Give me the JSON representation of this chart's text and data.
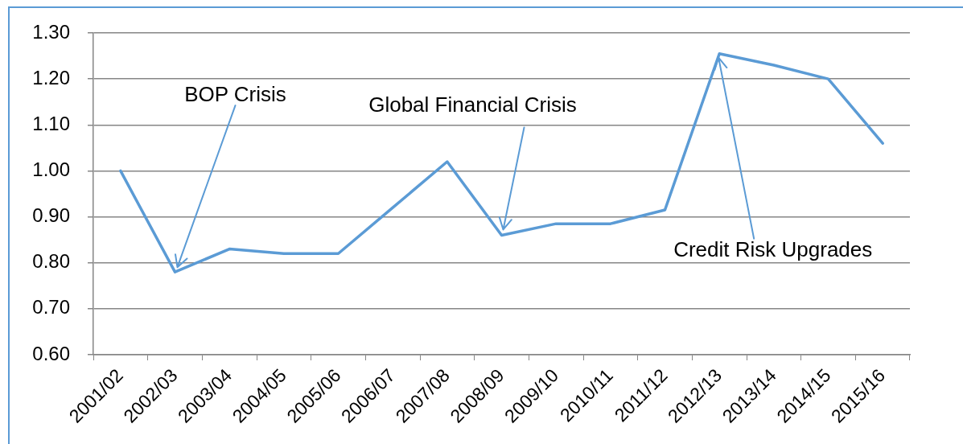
{
  "chart_data": {
    "type": "line",
    "categories": [
      "2001/02",
      "2002/03",
      "2003/04",
      "2004/05",
      "2005/06",
      "2006/07",
      "2007/08",
      "2008/09",
      "2009/10",
      "2010/11",
      "2011/12",
      "2012/13",
      "2013/14",
      "2014/15",
      "2015/16"
    ],
    "series": [
      {
        "color": "#5b9bd5",
        "values": [
          1.0,
          0.78,
          0.83,
          0.82,
          0.82,
          0.92,
          1.02,
          0.86,
          0.885,
          0.885,
          0.915,
          1.255,
          1.23,
          1.2,
          1.06
        ]
      }
    ],
    "ylim": [
      0.6,
      1.3
    ],
    "yticks": [
      {
        "value": 0.6,
        "label": "0.60"
      },
      {
        "value": 0.7,
        "label": "0.70"
      },
      {
        "value": 0.8,
        "label": "0.80"
      },
      {
        "value": 0.9,
        "label": "0.90"
      },
      {
        "value": 1.0,
        "label": "1.00"
      },
      {
        "value": 1.1,
        "label": "1.10"
      },
      {
        "value": 1.2,
        "label": "1.20"
      },
      {
        "value": 1.3,
        "label": "1.30"
      }
    ],
    "grid": "y",
    "marker": "none",
    "line_style": "solid",
    "annotations": [
      {
        "text": "BOP Crisis",
        "x": "2002/03",
        "y": 0.78
      },
      {
        "text": "Global Financial Crisis",
        "x": "2008/09",
        "y": 0.86
      },
      {
        "text": "Credit Risk Upgrades",
        "x": "2012/13",
        "y": 1.255
      }
    ]
  }
}
